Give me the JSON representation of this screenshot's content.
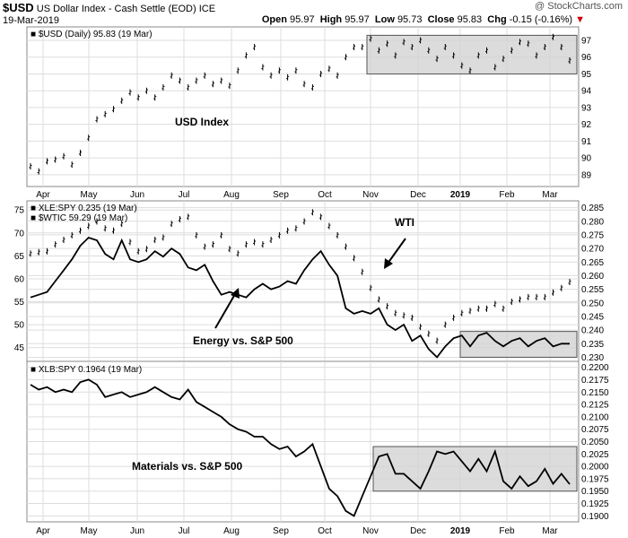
{
  "header": {
    "symbol": "$USD",
    "name": "US Dollar Index - Cash Settle (EOD)",
    "exchange": "ICE",
    "date": "19-Mar-2019",
    "watermark": "@ StockCharts.com",
    "open_label": "Open",
    "open": "95.97",
    "high_label": "High",
    "high": "95.97",
    "low_label": "Low",
    "low": "95.73",
    "close_label": "Close",
    "close": "95.83",
    "chg_label": "Chg",
    "chg": "-0.15 (-0.16%)"
  },
  "colors": {
    "line": "#000000",
    "box_fill": "#d3d3d3",
    "box_stroke": "#555555",
    "grid": "#dddddd",
    "down": "#cc0000"
  },
  "chart_data": [
    {
      "type": "line",
      "legend": [
        "■ $USD (Daily) 95.83 (19 Mar)"
      ],
      "x_labels": [
        "Apr",
        "May",
        "Jun",
        "Jul",
        "Aug",
        "Sep",
        "Oct",
        "Nov",
        "Dec",
        "2019",
        "Feb",
        "Mar"
      ],
      "y_ticks": [
        "89",
        "90",
        "91",
        "92",
        "93",
        "94",
        "95",
        "96",
        "97"
      ],
      "ylim": [
        88.3,
        97.8
      ],
      "annotations": [
        {
          "text": "USD Index"
        }
      ],
      "series": [
        {
          "values": [
            89.5,
            89.2,
            89.8,
            89.9,
            90.1,
            89.6,
            90.3,
            91.2,
            92.3,
            92.6,
            92.9,
            93.4,
            93.9,
            93.6,
            94.0,
            93.6,
            94.2,
            94.9,
            94.6,
            94.2,
            94.6,
            94.9,
            94.4,
            94.6,
            94.3,
            95.2,
            96.1,
            96.6,
            95.4,
            94.9,
            95.2,
            94.8,
            95.2,
            94.4,
            94.2,
            95.0,
            95.3,
            94.9,
            96.0,
            96.6,
            96.6,
            97.1,
            96.4,
            96.8,
            96.1,
            96.9,
            96.6,
            97.0,
            96.4,
            95.9,
            96.6,
            96.1,
            95.5,
            95.2,
            96.1,
            96.4,
            95.4,
            95.9,
            96.4,
            96.9,
            96.8,
            96.1,
            96.6,
            97.2,
            96.6,
            95.8
          ]
        }
      ],
      "range_box": {
        "y_range": [
          95.0,
          97.3
        ]
      }
    },
    {
      "type": "line",
      "legend": [
        "■ XLE:SPY 0.235 (19 Mar)",
        "■ $WTIC 59.29 (19 Mar)"
      ],
      "left_ticks": [
        "45",
        "50",
        "55",
        "60",
        "65",
        "70",
        "75"
      ],
      "left_lim": [
        42,
        77
      ],
      "right_ticks": [
        "0.230",
        "0.235",
        "0.240",
        "0.245",
        "0.250",
        "0.255",
        "0.260",
        "0.265",
        "0.270",
        "0.275",
        "0.280",
        "0.285"
      ],
      "right_lim": [
        0.2285,
        0.2875
      ],
      "annotations": [
        {
          "text": "WTI"
        },
        {
          "text": "Energy vs. S&P 500"
        }
      ],
      "series": [
        {
          "axis": "left",
          "values": [
            65.5,
            65.8,
            66.0,
            67.5,
            68.5,
            69.5,
            70.5,
            71.5,
            72.5,
            71.0,
            70.5,
            72.0,
            68.0,
            66.0,
            66.5,
            68.5,
            69.0,
            72.0,
            73.0,
            73.5,
            69.5,
            67.0,
            67.5,
            69.5,
            66.5,
            65.5,
            67.5,
            68.0,
            67.5,
            68.5,
            69.5,
            70.5,
            71.0,
            72.5,
            74.5,
            73.5,
            71.5,
            69.5,
            67.0,
            64.5,
            61.5,
            58.0,
            55.5,
            54.0,
            52.5,
            52.0,
            51.5,
            49.5,
            48.0,
            46.5,
            50.0,
            51.5,
            52.5,
            53.0,
            53.5,
            53.5,
            54.5,
            53.5,
            55.0,
            55.5,
            56.0,
            56.0,
            56.0,
            57.0,
            58.0,
            59.3
          ]
        },
        {
          "axis": "right",
          "values": [
            0.252,
            0.253,
            0.254,
            0.258,
            0.262,
            0.266,
            0.271,
            0.274,
            0.273,
            0.268,
            0.266,
            0.273,
            0.266,
            0.265,
            0.266,
            0.269,
            0.267,
            0.27,
            0.268,
            0.263,
            0.262,
            0.264,
            0.258,
            0.253,
            0.254,
            0.253,
            0.252,
            0.255,
            0.257,
            0.255,
            0.256,
            0.258,
            0.257,
            0.262,
            0.266,
            0.269,
            0.264,
            0.26,
            0.248,
            0.246,
            0.247,
            0.246,
            0.248,
            0.242,
            0.24,
            0.242,
            0.236,
            0.238,
            0.233,
            0.23,
            0.234,
            0.237,
            0.238,
            0.234,
            0.238,
            0.239,
            0.236,
            0.234,
            0.236,
            0.237,
            0.234,
            0.236,
            0.237,
            0.234,
            0.235,
            0.235
          ]
        }
      ],
      "range_box": {
        "y_range": [
          0.23,
          0.2395
        ],
        "axis": "right"
      }
    },
    {
      "type": "line",
      "legend": [
        "■ XLB:SPY 0.1964 (19 Mar)"
      ],
      "x_labels": [
        "Apr",
        "May",
        "Jun",
        "Jul",
        "Aug",
        "Sep",
        "Oct",
        "Nov",
        "Dec",
        "2019",
        "Feb",
        "Mar"
      ],
      "y_ticks": [
        "0.1900",
        "0.1925",
        "0.1950",
        "0.1975",
        "0.2000",
        "0.2025",
        "0.2050",
        "0.2075",
        "0.2100",
        "0.2125",
        "0.2150",
        "0.2175",
        "0.2200"
      ],
      "ylim": [
        0.1888,
        0.2212
      ],
      "annotations": [
        {
          "text": "Materials vs. S&P 500"
        }
      ],
      "series": [
        {
          "values": [
            0.2165,
            0.2155,
            0.216,
            0.215,
            0.2155,
            0.215,
            0.217,
            0.2175,
            0.2165,
            0.214,
            0.2145,
            0.215,
            0.214,
            0.2145,
            0.215,
            0.216,
            0.215,
            0.214,
            0.2135,
            0.2155,
            0.213,
            0.212,
            0.211,
            0.21,
            0.2085,
            0.2075,
            0.207,
            0.206,
            0.206,
            0.2045,
            0.2035,
            0.204,
            0.202,
            0.203,
            0.2045,
            0.2,
            0.1955,
            0.194,
            0.191,
            0.19,
            0.194,
            0.198,
            0.202,
            0.2025,
            0.1985,
            0.1985,
            0.197,
            0.1955,
            0.199,
            0.203,
            0.2025,
            0.203,
            0.201,
            0.199,
            0.2015,
            0.199,
            0.203,
            0.197,
            0.1955,
            0.198,
            0.196,
            0.197,
            0.1995,
            0.1965,
            0.1985,
            0.1964
          ]
        }
      ],
      "range_box": {
        "y_range": [
          0.195,
          0.204
        ]
      }
    }
  ]
}
